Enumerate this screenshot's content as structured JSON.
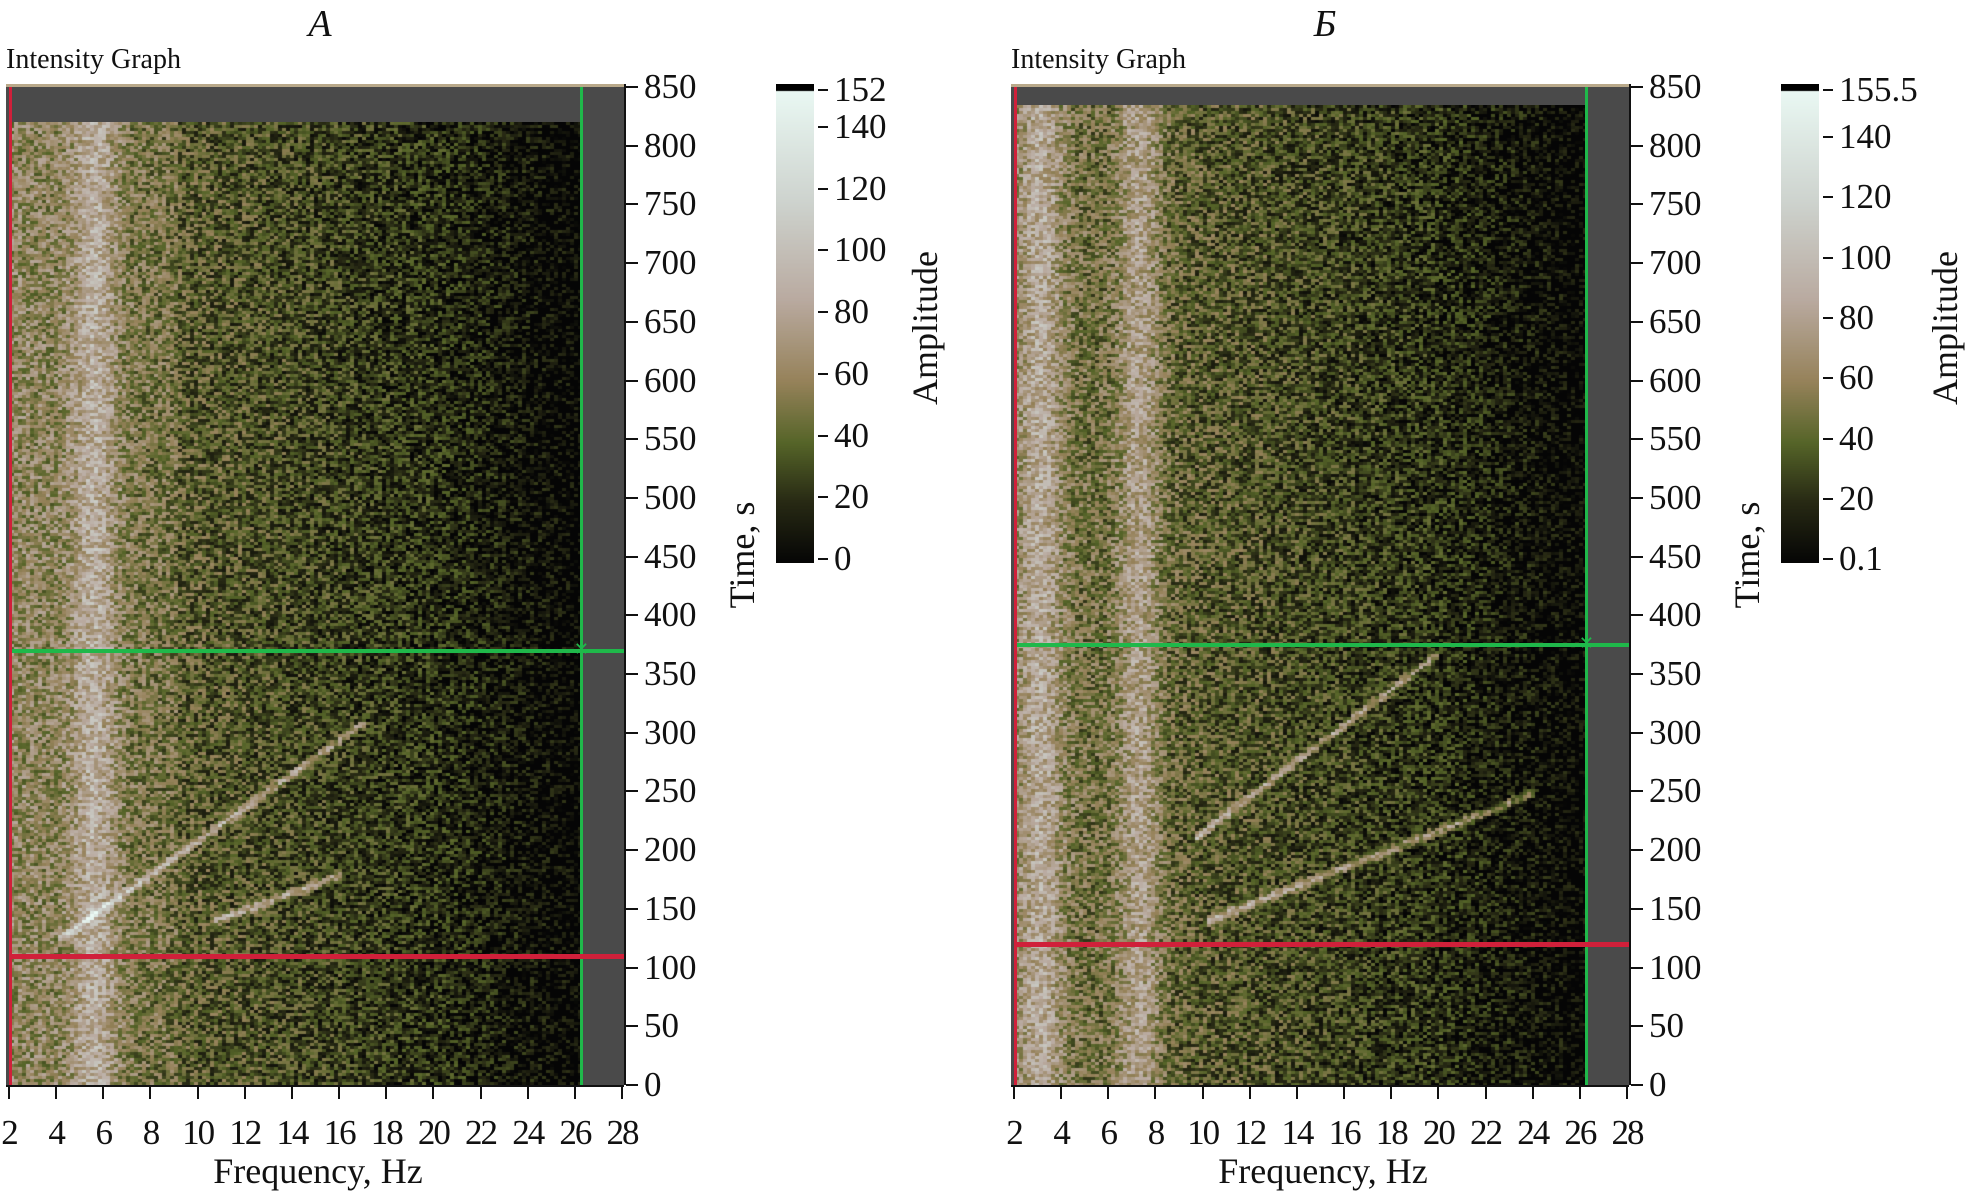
{
  "chart_data": [
    {
      "type": "heatmap",
      "panel_label": "А",
      "title": "Intensity Graph",
      "xlabel": "Frequency, Hz",
      "ylabel": "Time, s",
      "xlim": [
        2,
        28
      ],
      "ylim": [
        0,
        850
      ],
      "data_extent_time": [
        0,
        820
      ],
      "data_extent_freq": [
        2,
        26.3
      ],
      "xticks": [
        "2",
        "4",
        "6",
        "8",
        "10",
        "12",
        "14",
        "16",
        "18",
        "20",
        "22",
        "24",
        "26",
        "28"
      ],
      "yticks": [
        "0",
        "50",
        "100",
        "150",
        "200",
        "250",
        "300",
        "350",
        "400",
        "450",
        "500",
        "550",
        "600",
        "650",
        "700",
        "750",
        "800",
        "850"
      ],
      "colorbar": {
        "label": "Amplitude",
        "range": [
          0,
          152
        ],
        "ticks": [
          "0",
          "20",
          "40",
          "60",
          "80",
          "100",
          "120",
          "140",
          "152"
        ]
      },
      "cursors": {
        "green": {
          "freq": 26.3,
          "time": 370
        },
        "red": {
          "freq": 2.1,
          "time": 110
        }
      },
      "bright_bands_hz": [
        5.5
      ],
      "chirps": [
        {
          "from": [
            4,
            125
          ],
          "to": [
            17,
            310
          ]
        },
        {
          "from": [
            10.5,
            140
          ],
          "to": [
            16,
            180
          ]
        }
      ],
      "colors": {
        "green_cursor": "#1fb84a",
        "red_cursor": "#d0203a"
      }
    },
    {
      "type": "heatmap",
      "panel_label": "Б",
      "title": "Intensity Graph",
      "xlabel": "Frequency, Hz",
      "ylabel": "Time, s",
      "xlim": [
        2,
        28
      ],
      "ylim": [
        0,
        850
      ],
      "data_extent_time": [
        0,
        835
      ],
      "data_extent_freq": [
        2,
        26.3
      ],
      "xticks": [
        "2",
        "4",
        "6",
        "8",
        "10",
        "12",
        "14",
        "16",
        "18",
        "20",
        "22",
        "24",
        "26",
        "28"
      ],
      "yticks": [
        "0",
        "50",
        "100",
        "150",
        "200",
        "250",
        "300",
        "350",
        "400",
        "450",
        "500",
        "550",
        "600",
        "650",
        "700",
        "750",
        "800",
        "850"
      ],
      "colorbar": {
        "label": "Amplitude",
        "range": [
          0.1,
          155.5
        ],
        "ticks": [
          "0.1",
          "20",
          "40",
          "60",
          "80",
          "100",
          "120",
          "140",
          "155.5"
        ]
      },
      "cursors": {
        "green": {
          "freq": 26.3,
          "time": 375
        },
        "red": {
          "freq": 2.1,
          "time": 120
        }
      },
      "bright_bands_hz": [
        3,
        7.2
      ],
      "chirps": [
        {
          "from": [
            9.5,
            210
          ],
          "to": [
            20,
            370
          ]
        },
        {
          "from": [
            10,
            140
          ],
          "to": [
            24,
            250
          ]
        }
      ],
      "colors": {
        "green_cursor": "#1fb84a",
        "red_cursor": "#d0203a"
      }
    }
  ]
}
